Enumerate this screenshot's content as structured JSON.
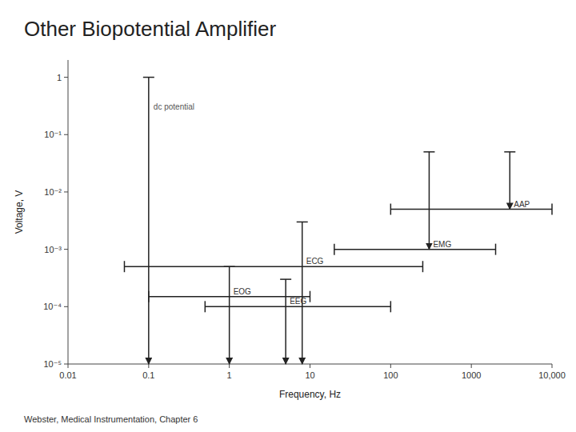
{
  "chart_data": {
    "type": "range",
    "title": "Other Biopotential Amplifier",
    "subtitle": "Webster, Medical Instrumentation,  Chapter 6",
    "xlabel": "Frequency, Hz",
    "ylabel": "Voltage, V",
    "log": true,
    "grid": false,
    "xlim": [
      0.01,
      10000
    ],
    "ylim": [
      1e-05,
      2
    ],
    "xticks": [
      0.01,
      0.1,
      1,
      10,
      100,
      1000,
      {
        "value": 10000,
        "label": "10,000"
      }
    ],
    "yticks": [
      {
        "value": 1e-05,
        "label": "10⁻⁵"
      },
      {
        "value": 0.0001,
        "label": "10⁻⁴"
      },
      {
        "value": 0.001,
        "label": "10⁻³"
      },
      {
        "value": 0.01,
        "label": "10⁻²"
      },
      {
        "value": 0.1,
        "label": "10⁻¹"
      },
      1
    ],
    "series": [
      {
        "name": "dc potential",
        "type": "vertical",
        "freq_vert": 0.1,
        "volt_min": 1e-05,
        "volt_max": 1.0
      },
      {
        "name": "EOG",
        "type": "cross",
        "freq_min": 0.1,
        "freq_max": 10,
        "volt_center": 0.00015,
        "freq_vert": 1.0,
        "volt_min": 1e-05,
        "volt_max": 0.0005
      },
      {
        "name": "EEG",
        "type": "cross",
        "freq_min": 0.5,
        "freq_max": 100,
        "volt_center": 0.0001,
        "freq_vert": 5.0,
        "volt_min": 1e-05,
        "volt_max": 0.0003
      },
      {
        "name": "ECG",
        "type": "cross",
        "freq_min": 0.05,
        "freq_max": 250,
        "volt_center": 0.0005,
        "freq_vert": 8.0,
        "volt_min": 1e-05,
        "volt_max": 0.003
      },
      {
        "name": "EMG",
        "type": "cross",
        "freq_min": 20,
        "freq_max": 2000,
        "volt_center": 0.001,
        "freq_vert": 300,
        "volt_min": 0.001,
        "volt_max": 0.05
      },
      {
        "name": "AAP",
        "type": "cross",
        "freq_min": 100,
        "freq_max": 10000,
        "volt_center": 0.005,
        "freq_vert": 3000,
        "volt_min": 0.005,
        "volt_max": 0.05
      }
    ]
  }
}
